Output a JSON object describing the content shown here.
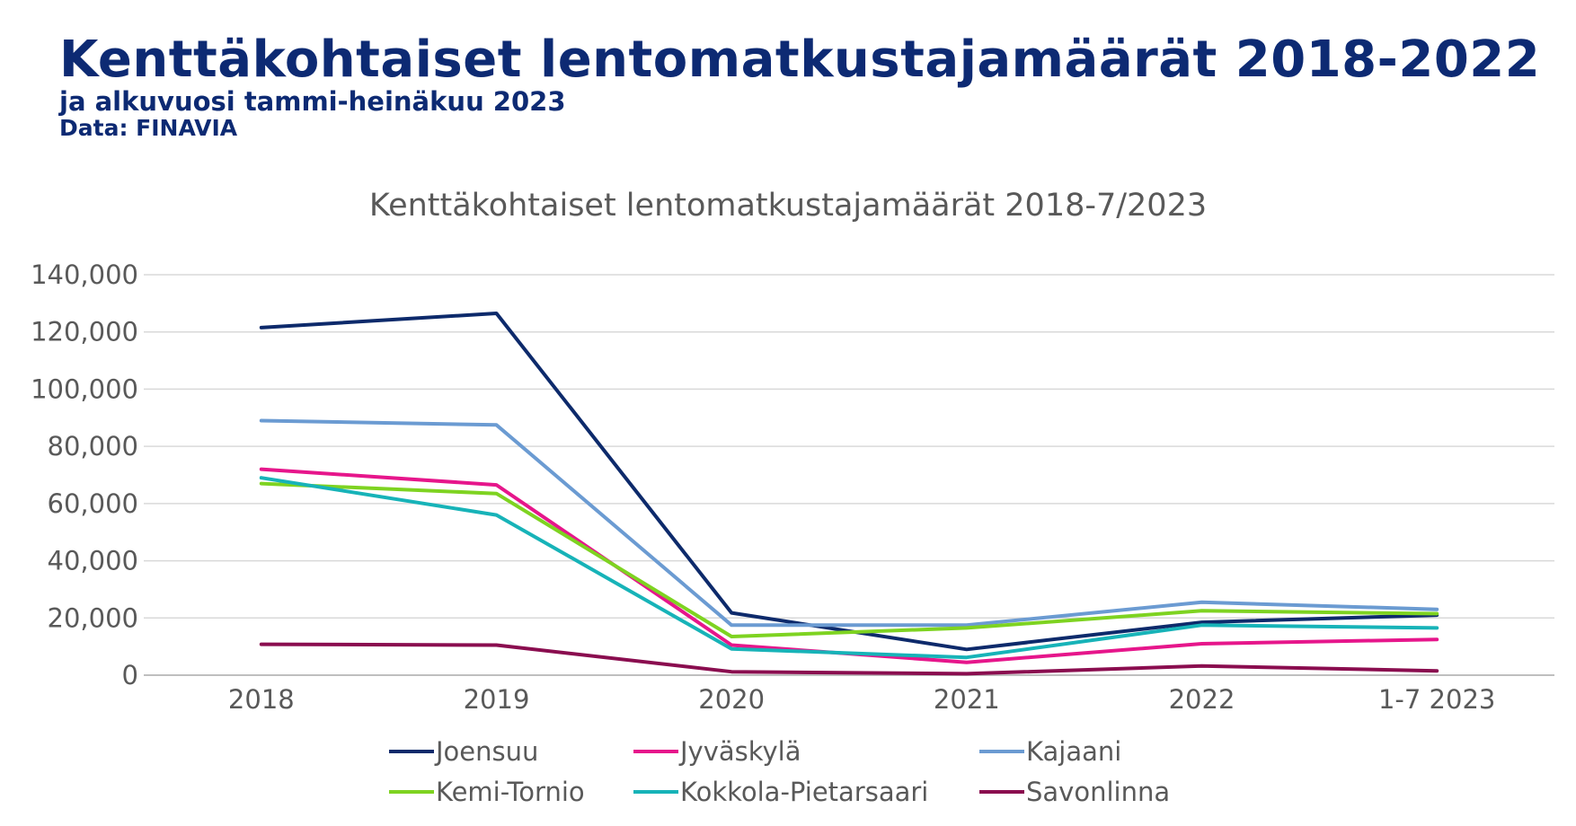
{
  "header": {
    "title": "Kenttäkohtaiset lentomatkustajamäärät 2018-2022",
    "subtitle": "ja alkuvuosi tammi-heinäkuu 2023",
    "source": "Data: FINAVIA"
  },
  "chart_data": {
    "type": "line",
    "title": "Kenttäkohtaiset lentomatkustajamäärät 2018-7/2023",
    "xlabel": "",
    "ylabel": "",
    "categories": [
      "2018",
      "2019",
      "2020",
      "2021",
      "2022",
      "1-7 2023"
    ],
    "ylim": [
      0,
      140000
    ],
    "yticks": [
      0,
      20000,
      40000,
      60000,
      80000,
      100000,
      120000,
      140000
    ],
    "ytick_labels": [
      "0",
      "20,000",
      "40,000",
      "60,000",
      "80,000",
      "100,000",
      "120,000",
      "140,000"
    ],
    "grid": true,
    "legend_position": "bottom",
    "series": [
      {
        "name": "Joensuu",
        "color": "#0d2a6b",
        "values": [
          121500,
          126500,
          21800,
          9000,
          18500,
          21000
        ]
      },
      {
        "name": "Jyväskylä",
        "color": "#e6168b",
        "values": [
          72000,
          66500,
          10500,
          4500,
          11000,
          12500
        ]
      },
      {
        "name": "Kajaani",
        "color": "#6b9bd2",
        "values": [
          89000,
          87500,
          17500,
          17500,
          25500,
          23000
        ]
      },
      {
        "name": "Kemi-Tornio",
        "color": "#7ed321",
        "values": [
          67000,
          63500,
          13500,
          16500,
          22500,
          21500
        ]
      },
      {
        "name": "Kokkola-Pietarsaari",
        "color": "#17b3b8",
        "values": [
          69000,
          56000,
          9200,
          6200,
          17500,
          16500
        ]
      },
      {
        "name": "Savonlinna",
        "color": "#8a0d4f",
        "values": [
          10800,
          10500,
          1200,
          500,
          3200,
          1500
        ]
      }
    ]
  }
}
